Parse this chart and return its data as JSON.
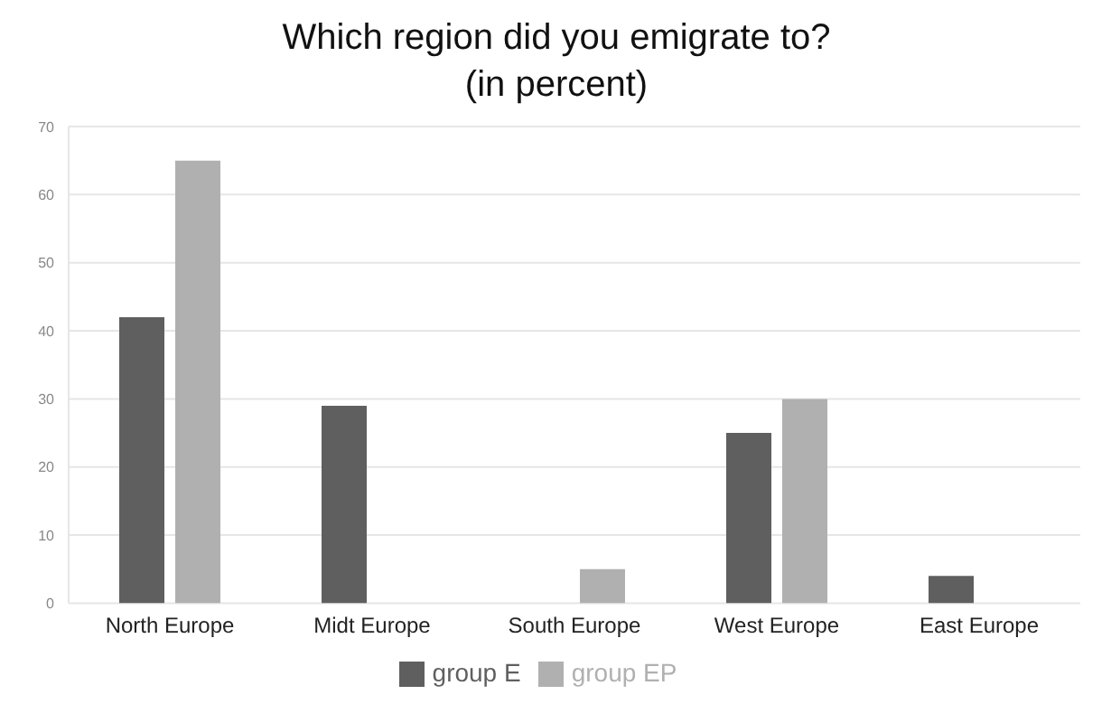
{
  "chart_data": {
    "type": "bar",
    "title": "Which region did you emigrate to?\n(in percent)",
    "categories": [
      "North Europe",
      "Midt Europe",
      "South Europe",
      "West Europe",
      "East  Europe"
    ],
    "series": [
      {
        "name": "group E",
        "color": "#5f5f5f",
        "values": [
          42,
          29,
          null,
          25,
          4
        ]
      },
      {
        "name": "group EP",
        "color": "#b0b0b0",
        "values": [
          65,
          null,
          5,
          30,
          null
        ]
      }
    ],
    "ylim": [
      0,
      70
    ],
    "yticks": [
      0,
      10,
      20,
      30,
      40,
      50,
      60,
      70
    ],
    "grid": "y",
    "legend": "bottom"
  }
}
